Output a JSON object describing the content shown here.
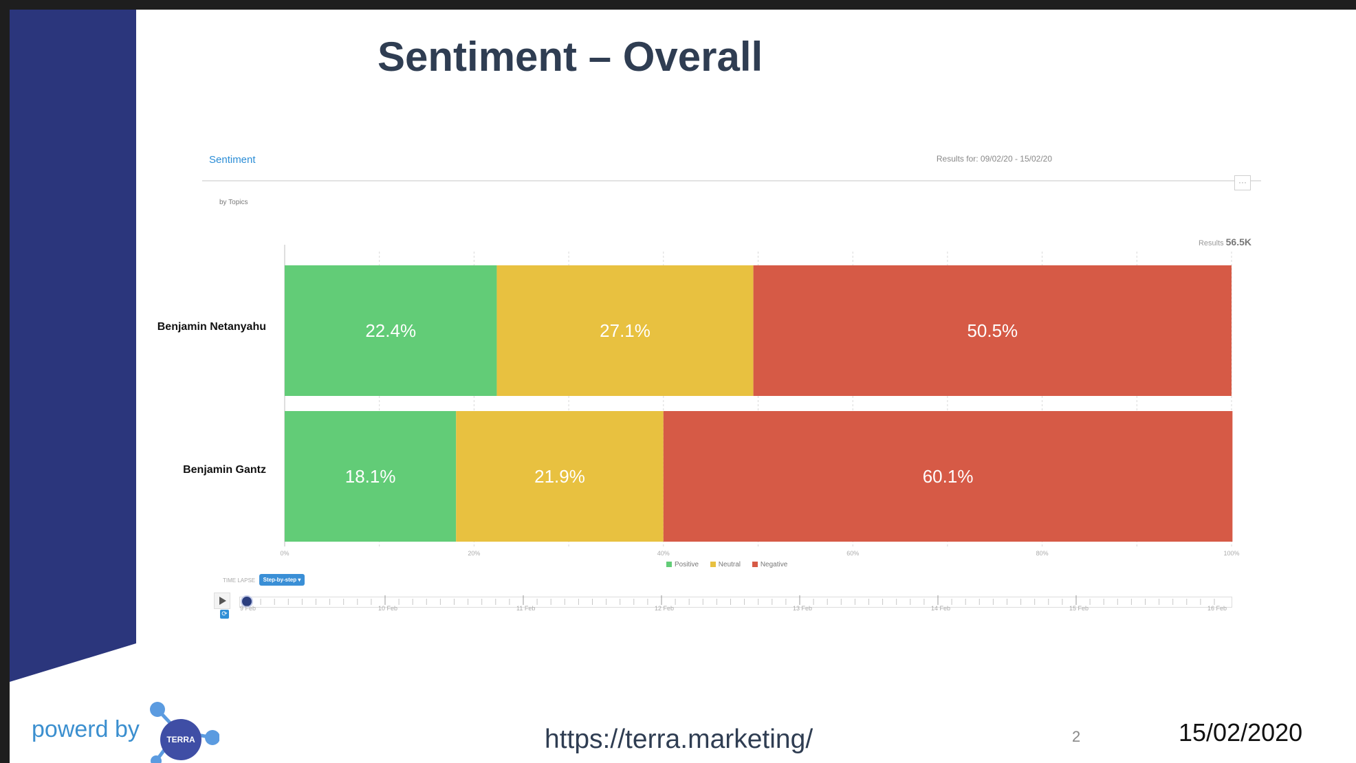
{
  "slide": {
    "title": "Sentiment – Overall",
    "footer": {
      "powered_by": "powerd by",
      "logo_text": "TERRA",
      "url": "https://terra.marketing/",
      "page_number": "2",
      "date": "15/02/2020"
    },
    "colors": {
      "band": "#2b367c",
      "title": "#2f3d52",
      "accent": "#3b8fcf"
    }
  },
  "widget": {
    "title": "Sentiment",
    "results_for": "Results for: 09/02/20 - 15/02/20",
    "subtitle": "by Topics",
    "results_label": "Results",
    "results_value": "56.5K",
    "menu_icon": "ellipsis-icon"
  },
  "timelapse": {
    "label": "TIME LAPSE",
    "mode": "Step-by-step ▾",
    "days": [
      "9 Feb",
      "10 Feb",
      "11 Feb",
      "12 Feb",
      "13 Feb",
      "14 Feb",
      "15 Feb",
      "16 Feb"
    ],
    "position": 0,
    "play_icon": "play-icon",
    "refresh_icon": "refresh-icon"
  },
  "chart_data": {
    "type": "bar",
    "orientation": "horizontal",
    "stacked": true,
    "title": "Sentiment",
    "categories": [
      "Benjamin Netanyahu",
      "Benjamin Gantz"
    ],
    "series": [
      {
        "name": "Positive",
        "color": "#62cc77",
        "values": [
          22.4,
          18.1
        ],
        "labels": [
          "22.4%",
          "18.1%"
        ]
      },
      {
        "name": "Neutral",
        "color": "#e8c140",
        "values": [
          27.1,
          21.9
        ],
        "labels": [
          "27.1%",
          "21.9%"
        ]
      },
      {
        "name": "Negative",
        "color": "#d65a46",
        "values": [
          50.5,
          60.1
        ],
        "labels": [
          "50.5%",
          "60.1%"
        ]
      }
    ],
    "xlim": [
      0,
      100
    ],
    "x_ticks": [
      "0%",
      "20%",
      "40%",
      "60%",
      "80%",
      "100%"
    ],
    "legend": [
      "Positive",
      "Neutral",
      "Negative"
    ],
    "legend_position": "bottom",
    "grid": true
  }
}
